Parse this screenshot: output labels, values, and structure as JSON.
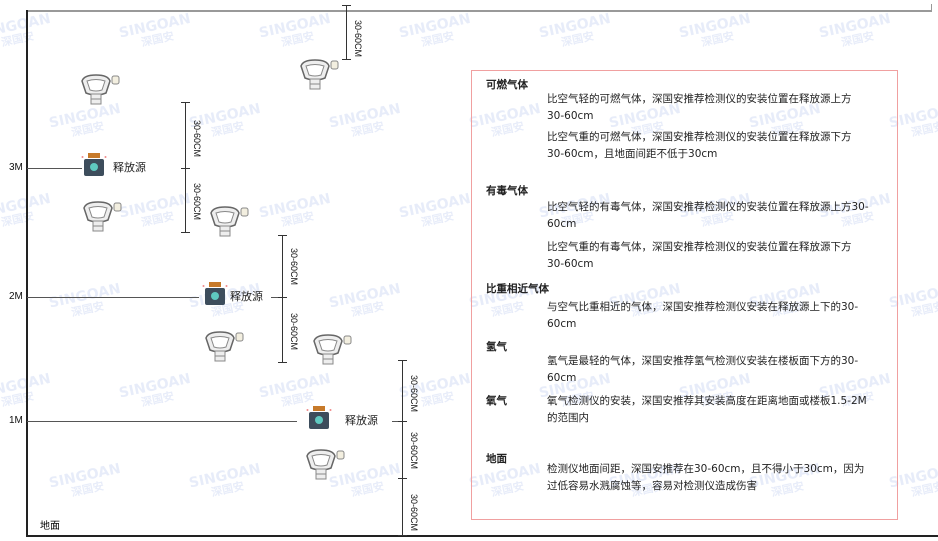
{
  "watermark": "SINGOAN 深国安",
  "levels": [
    "3M",
    "2M",
    "1M"
  ],
  "ground_label": "地面",
  "source_label": "释放源",
  "dimension_label": "30-60CM",
  "panel": {
    "sections": [
      {
        "title": "可燃气体",
        "paras": [
          "比空气轻的可燃气体，深国安推荐检测仪的安装位置在释放源上方30-60cm",
          "比空气重的可燃气体，深国安推荐检测仪的安装位置在释放源下方30-60cm，且地面间距不低于30cm"
        ]
      },
      {
        "title": "有毒气体",
        "paras": [
          "比空气轻的有毒气体，深国安推荐检测仪的安装位置在释放源上方30-60cm",
          "比空气重的有毒气体，深国安推荐检测仪的安装位置在释放源下方30-60cm"
        ]
      },
      {
        "title": "比重相近气体",
        "paras": [
          "与空气比重相近的气体，深国安推荐检测仪安装在释放源上下的30-60cm"
        ]
      },
      {
        "title": "氢气",
        "paras": [
          "氢气是最轻的气体，深国安推荐氢气检测仪安装在楼板面下方的30-60cm"
        ]
      },
      {
        "title": "氧气",
        "paras": [
          "氧气检测仪的安装，深国安推荐其安装高度在距离地面或楼板1.5-2M的范围内"
        ]
      },
      {
        "title": "地面",
        "paras": [
          "检测仪地面间距，深国安推荐在30-60cm，且不得小于30cm，因为过低容易水溅腐蚀等，容易对检测仪造成伤害"
        ]
      }
    ]
  }
}
